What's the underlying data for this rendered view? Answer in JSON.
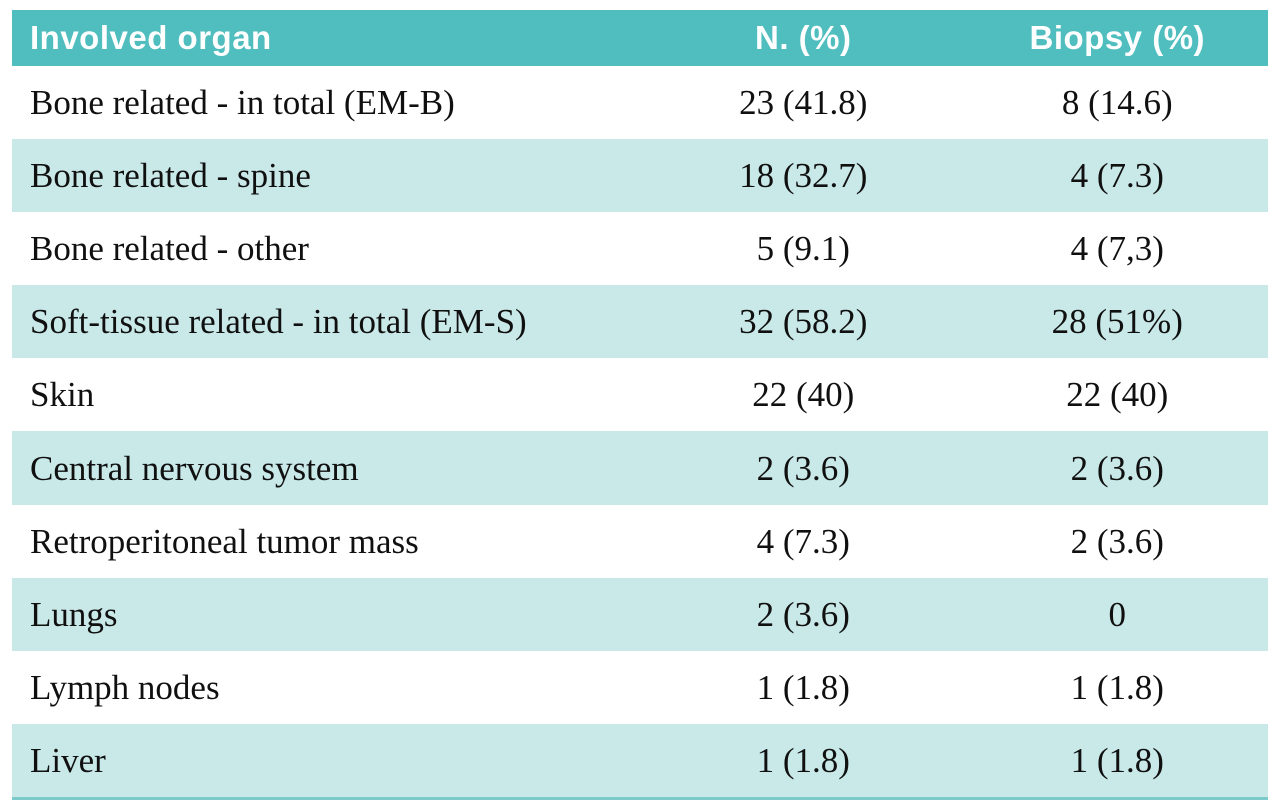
{
  "colors": {
    "header_bg": "#50bebe",
    "row_alt_bg": "#c9e8e8",
    "bottom_border": "#7ccaca",
    "header_text": "#ffffff",
    "body_text": "#101010"
  },
  "chart_data": {
    "type": "table",
    "title": "",
    "columns": [
      "Involved organ",
      "N. (%)",
      "Biopsy (%)"
    ],
    "rows": [
      [
        "Bone related - in total (EM-B)",
        "23 (41.8)",
        "8 (14.6)"
      ],
      [
        "Bone related - spine",
        "18 (32.7)",
        "4 (7.3)"
      ],
      [
        "Bone related - other",
        "5 (9.1)",
        "4  (7,3)"
      ],
      [
        "Soft-tissue related - in total (EM-S)",
        "32 (58.2)",
        "28 (51%)"
      ],
      [
        "Skin",
        "22 (40)",
        "22 (40)"
      ],
      [
        "Central nervous system",
        "2 (3.6)",
        "2 (3.6)"
      ],
      [
        "Retroperitoneal tumor mass",
        "4 (7.3)",
        "2 (3.6)"
      ],
      [
        "Lungs",
        "2 (3.6)",
        "0"
      ],
      [
        "Lymph nodes",
        "1 (1.8)",
        "1 (1.8)"
      ],
      [
        "Liver",
        "1 (1.8)",
        "1 (1.8)"
      ]
    ],
    "layout": {
      "header_background": "#50bebe",
      "alternating_rows": true,
      "first_data_row_background": "#ffffff"
    }
  }
}
